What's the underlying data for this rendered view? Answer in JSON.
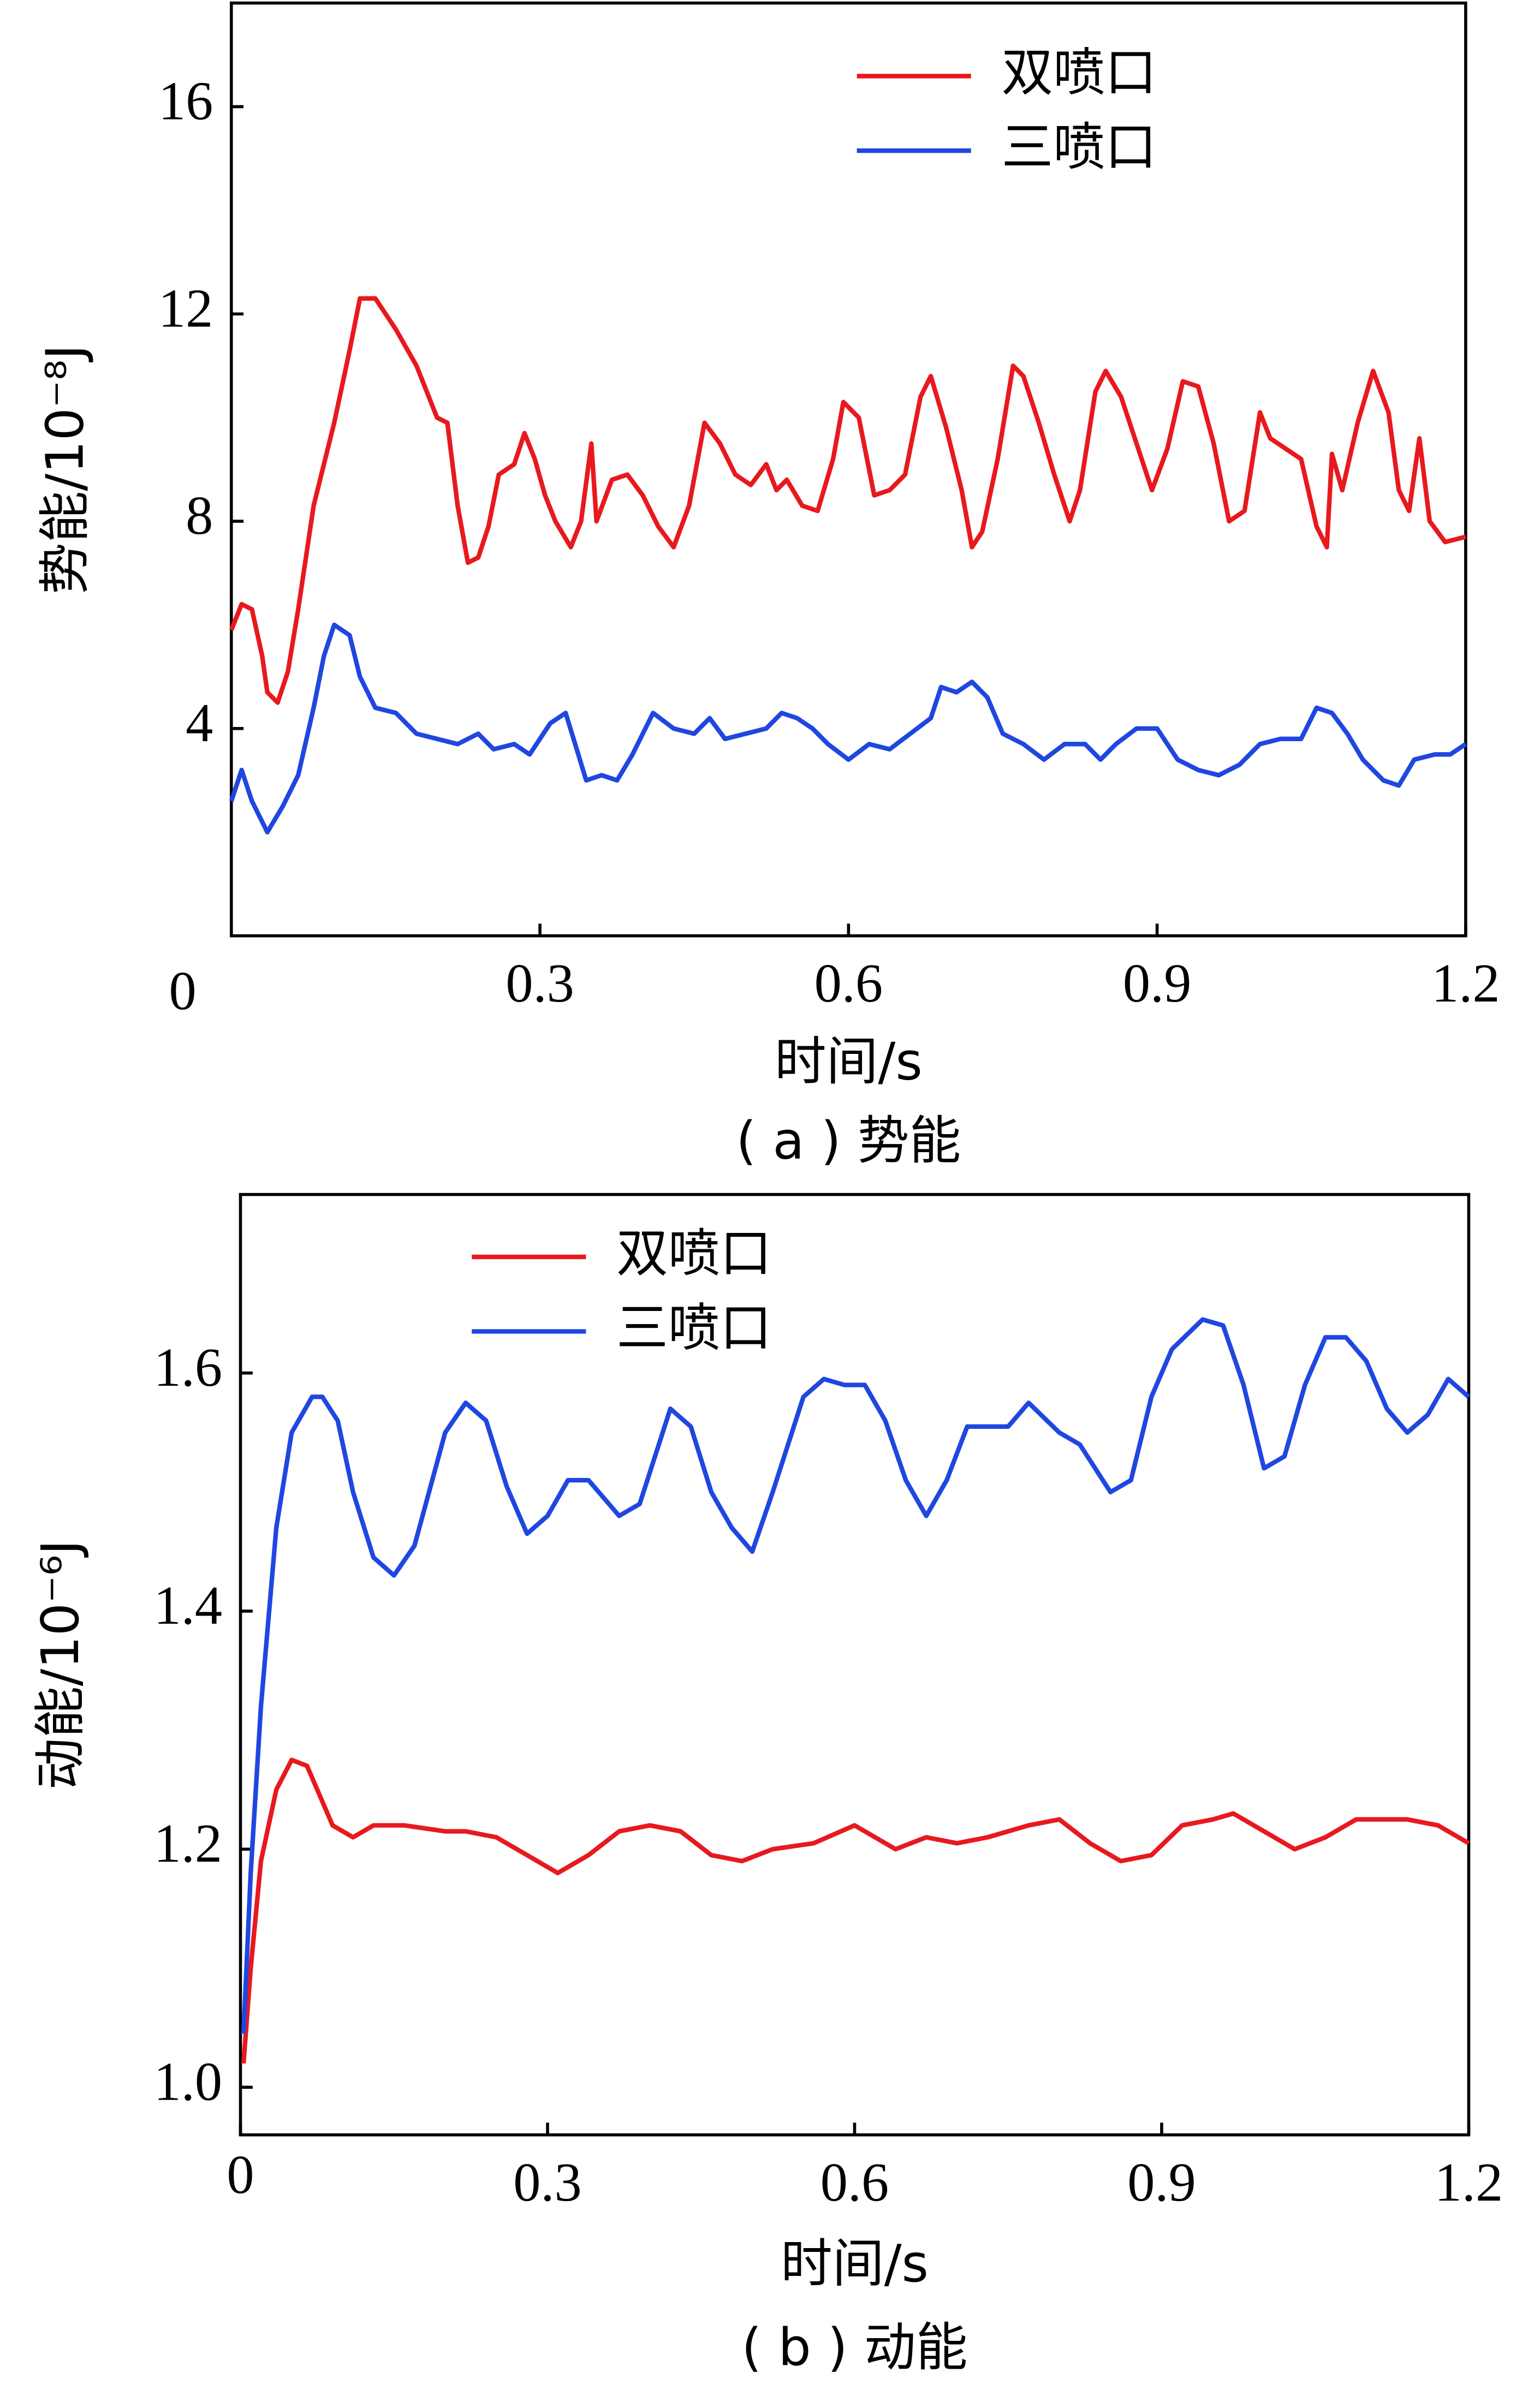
{
  "chart_data": [
    {
      "type": "line",
      "title": "( a ) 势能",
      "xlabel": "时间/s",
      "ylabel": "势能/10⁻⁸J",
      "xlim": [
        0,
        1.2
      ],
      "ylim": [
        0,
        18
      ],
      "xticks": [
        0,
        0.3,
        0.6,
        0.9,
        {
          "value": 1.2,
          "label": "1.2"
        }
      ],
      "yticks": [
        4,
        8,
        12,
        16
      ],
      "legend": "upper right",
      "grid": false,
      "series": [
        {
          "name": "双喷口",
          "color": "#e8191e",
          "x": [
            0,
            0.01,
            0.02,
            0.03,
            0.035,
            0.045,
            0.055,
            0.065,
            0.08,
            0.1,
            0.115,
            0.125,
            0.14,
            0.16,
            0.18,
            0.2,
            0.21,
            0.22,
            0.23,
            0.24,
            0.25,
            0.26,
            0.275,
            0.285,
            0.295,
            0.305,
            0.315,
            0.33,
            0.34,
            0.35,
            0.355,
            0.37,
            0.385,
            0.4,
            0.415,
            0.43,
            0.445,
            0.46,
            0.475,
            0.49,
            0.505,
            0.52,
            0.53,
            0.54,
            0.555,
            0.57,
            0.585,
            0.595,
            0.61,
            0.625,
            0.64,
            0.655,
            0.67,
            0.68,
            0.695,
            0.71,
            0.72,
            0.73,
            0.745,
            0.76,
            0.77,
            0.785,
            0.8,
            0.815,
            0.825,
            0.84,
            0.85,
            0.865,
            0.88,
            0.895,
            0.91,
            0.925,
            0.94,
            0.955,
            0.97,
            0.985,
            1.0,
            1.01,
            1.025,
            1.04,
            1.055,
            1.065,
            1.07,
            1.08,
            1.095,
            1.11,
            1.125,
            1.135,
            1.145,
            1.155,
            1.165,
            1.18,
            1.2
          ],
          "values": [
            5.9,
            6.4,
            6.3,
            5.4,
            4.7,
            4.5,
            5.1,
            6.3,
            8.3,
            9.9,
            11.3,
            12.3,
            12.3,
            11.7,
            11.0,
            10.0,
            9.9,
            8.3,
            7.2,
            7.3,
            7.9,
            8.9,
            9.1,
            9.7,
            9.2,
            8.5,
            8.0,
            7.5,
            8.0,
            9.5,
            8.0,
            8.8,
            8.9,
            8.5,
            7.9,
            7.5,
            8.3,
            9.9,
            9.5,
            8.9,
            8.7,
            9.1,
            8.6,
            8.8,
            8.3,
            8.2,
            9.2,
            10.3,
            10.0,
            8.5,
            8.6,
            8.9,
            10.4,
            10.8,
            9.8,
            8.6,
            7.5,
            7.8,
            9.2,
            11.0,
            10.8,
            9.9,
            8.9,
            8.0,
            8.6,
            10.5,
            10.9,
            10.4,
            9.5,
            8.6,
            9.4,
            10.7,
            10.6,
            9.5,
            8.0,
            8.2,
            10.1,
            9.6,
            9.4,
            9.2,
            7.9,
            7.5,
            9.3,
            8.6,
            9.9,
            10.9,
            10.1,
            8.6,
            8.2,
            9.6,
            8.0,
            7.6,
            7.7
          ]
        },
        {
          "name": "三喷口",
          "color": "#1f47e0",
          "x": [
            0,
            0.01,
            0.02,
            0.035,
            0.05,
            0.065,
            0.08,
            0.09,
            0.1,
            0.115,
            0.125,
            0.14,
            0.16,
            0.18,
            0.2,
            0.22,
            0.24,
            0.255,
            0.275,
            0.29,
            0.31,
            0.325,
            0.345,
            0.36,
            0.375,
            0.39,
            0.41,
            0.43,
            0.45,
            0.465,
            0.48,
            0.5,
            0.52,
            0.535,
            0.55,
            0.565,
            0.58,
            0.6,
            0.62,
            0.64,
            0.66,
            0.68,
            0.69,
            0.705,
            0.72,
            0.735,
            0.75,
            0.77,
            0.79,
            0.81,
            0.83,
            0.845,
            0.86,
            0.88,
            0.9,
            0.92,
            0.94,
            0.96,
            0.98,
            1.0,
            1.02,
            1.04,
            1.055,
            1.07,
            1.085,
            1.1,
            1.12,
            1.135,
            1.15,
            1.17,
            1.185,
            1.2
          ],
          "values": [
            2.6,
            3.2,
            2.6,
            2.0,
            2.5,
            3.1,
            4.4,
            5.4,
            6.0,
            5.8,
            5.0,
            4.4,
            4.3,
            3.9,
            3.8,
            3.7,
            3.9,
            3.6,
            3.7,
            3.5,
            4.1,
            4.3,
            3.0,
            3.1,
            3.0,
            3.5,
            4.3,
            4.0,
            3.9,
            4.2,
            3.8,
            3.9,
            4.0,
            4.3,
            4.2,
            4.0,
            3.7,
            3.4,
            3.7,
            3.6,
            3.9,
            4.2,
            4.8,
            4.7,
            4.9,
            4.6,
            3.9,
            3.7,
            3.4,
            3.7,
            3.7,
            3.4,
            3.7,
            4.0,
            4.0,
            3.4,
            3.2,
            3.1,
            3.3,
            3.7,
            3.8,
            3.8,
            4.4,
            4.3,
            3.9,
            3.4,
            3.0,
            2.9,
            3.4,
            3.5,
            3.5,
            3.7
          ]
        }
      ]
    },
    {
      "type": "line",
      "title": "( b ) 动能",
      "xlabel": "时间/s",
      "ylabel": "动能/10⁻⁶J",
      "xlim": [
        0,
        1.2
      ],
      "ylim": [
        0.96,
        1.75
      ],
      "xticks": [
        0,
        0.3,
        0.6,
        0.9,
        {
          "value": 1.2,
          "label": "1.2"
        }
      ],
      "yticks": [
        {
          "value": 1.0,
          "label": "1.0"
        },
        {
          "value": 1.2,
          "label": "1.2"
        },
        {
          "value": 1.4,
          "label": "1.4"
        },
        {
          "value": 1.6,
          "label": "1.6"
        }
      ],
      "legend": "upper left",
      "grid": false,
      "series": [
        {
          "name": "双喷口",
          "color": "#e8191e",
          "x": [
            0.003,
            0.01,
            0.02,
            0.035,
            0.05,
            0.065,
            0.08,
            0.09,
            0.11,
            0.13,
            0.16,
            0.2,
            0.22,
            0.25,
            0.27,
            0.31,
            0.34,
            0.37,
            0.4,
            0.43,
            0.46,
            0.49,
            0.52,
            0.56,
            0.6,
            0.64,
            0.67,
            0.7,
            0.73,
            0.77,
            0.8,
            0.83,
            0.86,
            0.89,
            0.92,
            0.95,
            0.97,
            1.0,
            1.03,
            1.06,
            1.09,
            1.12,
            1.14,
            1.17,
            1.2
          ],
          "values": [
            1.02,
            1.1,
            1.19,
            1.25,
            1.275,
            1.27,
            1.24,
            1.22,
            1.21,
            1.22,
            1.22,
            1.215,
            1.215,
            1.21,
            1.2,
            1.18,
            1.195,
            1.215,
            1.22,
            1.215,
            1.195,
            1.19,
            1.2,
            1.205,
            1.22,
            1.2,
            1.21,
            1.205,
            1.21,
            1.22,
            1.225,
            1.205,
            1.19,
            1.195,
            1.22,
            1.225,
            1.23,
            1.215,
            1.2,
            1.21,
            1.225,
            1.225,
            1.225,
            1.22,
            1.205
          ]
        },
        {
          "name": "三喷口",
          "color": "#1f47e0",
          "x": [
            0.003,
            0.01,
            0.02,
            0.035,
            0.05,
            0.07,
            0.08,
            0.095,
            0.11,
            0.13,
            0.15,
            0.17,
            0.2,
            0.22,
            0.24,
            0.26,
            0.28,
            0.3,
            0.32,
            0.34,
            0.37,
            0.39,
            0.42,
            0.44,
            0.46,
            0.48,
            0.5,
            0.52,
            0.55,
            0.57,
            0.59,
            0.61,
            0.63,
            0.65,
            0.67,
            0.69,
            0.71,
            0.73,
            0.75,
            0.77,
            0.8,
            0.82,
            0.85,
            0.87,
            0.89,
            0.91,
            0.94,
            0.96,
            0.98,
            1.0,
            1.02,
            1.04,
            1.06,
            1.08,
            1.1,
            1.12,
            1.14,
            1.16,
            1.18,
            1.2
          ],
          "values": [
            1.045,
            1.18,
            1.32,
            1.47,
            1.55,
            1.58,
            1.58,
            1.56,
            1.5,
            1.445,
            1.43,
            1.455,
            1.55,
            1.575,
            1.56,
            1.505,
            1.465,
            1.48,
            1.51,
            1.51,
            1.48,
            1.49,
            1.57,
            1.555,
            1.5,
            1.47,
            1.45,
            1.5,
            1.58,
            1.595,
            1.59,
            1.59,
            1.56,
            1.51,
            1.48,
            1.51,
            1.555,
            1.555,
            1.555,
            1.575,
            1.55,
            1.54,
            1.5,
            1.51,
            1.58,
            1.62,
            1.645,
            1.64,
            1.59,
            1.52,
            1.53,
            1.59,
            1.63,
            1.63,
            1.61,
            1.57,
            1.55,
            1.565,
            1.595,
            1.58
          ]
        }
      ]
    }
  ]
}
